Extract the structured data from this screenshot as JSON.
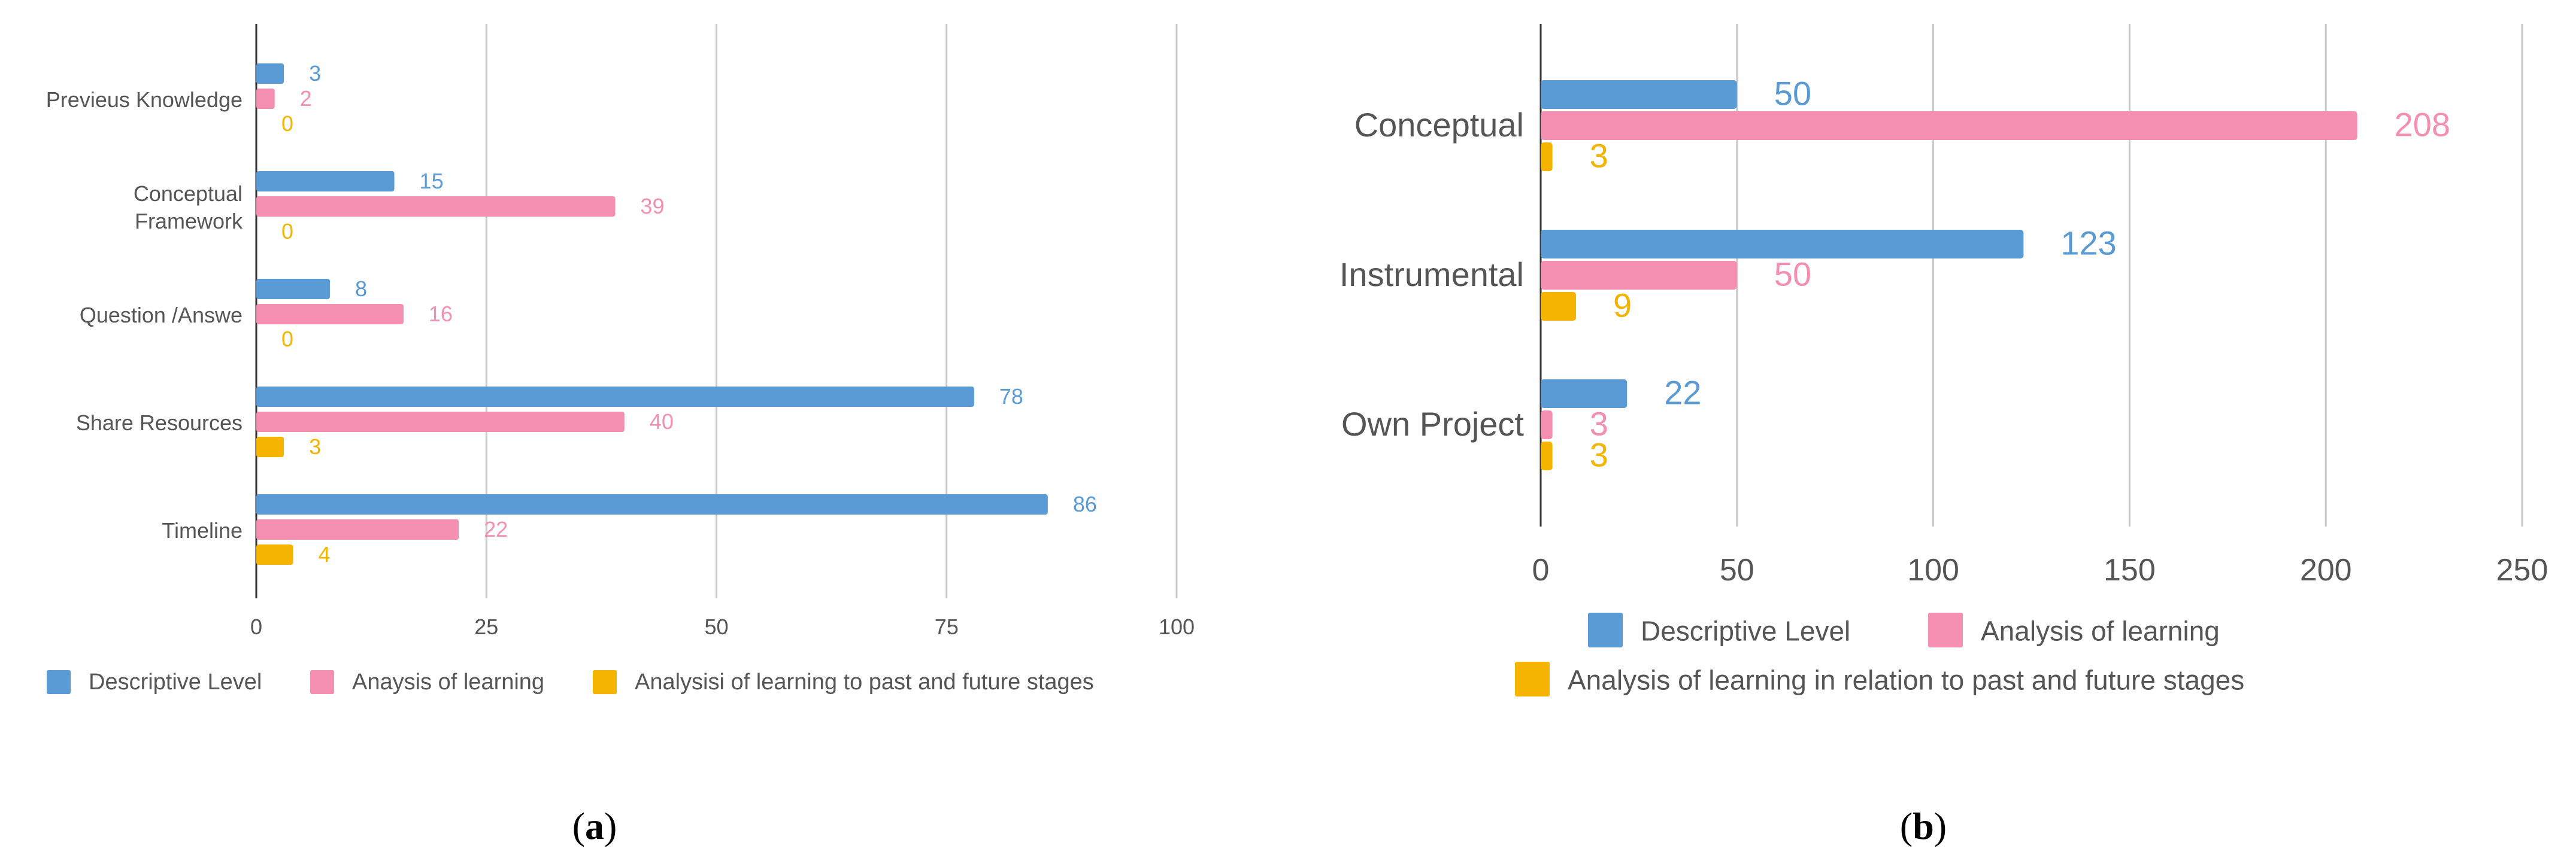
{
  "colors": {
    "descriptive": "#5b9bd5",
    "analysis": "#f48fb1",
    "past_future": "#f4b400"
  },
  "captions": {
    "a": {
      "open": "(",
      "letter": "a",
      "close": ")"
    },
    "b": {
      "open": "(",
      "letter": "b",
      "close": ")"
    }
  },
  "chart_data": [
    {
      "type": "bar",
      "orientation": "horizontal",
      "categories": [
        "Previeus Knowledge",
        "Conceptual Framework",
        "Question /Answe",
        "Share Resources",
        "Timeline"
      ],
      "category_lines": [
        [
          "Previeus Knowledge"
        ],
        [
          "Conceptual",
          "Framework"
        ],
        [
          "Question /Answe"
        ],
        [
          "Share Resources"
        ],
        [
          "Timeline"
        ]
      ],
      "series": [
        {
          "name": "Descriptive Level",
          "values": [
            3,
            15,
            8,
            78,
            86
          ],
          "color": "#5b9bd5"
        },
        {
          "name": "Anaysis of learning",
          "values": [
            2,
            39,
            16,
            40,
            22
          ],
          "color": "#f48fb1"
        },
        {
          "name": "Analysisi of learning to past and future stages",
          "values": [
            0,
            0,
            0,
            3,
            4
          ],
          "color": "#f4b400"
        }
      ],
      "xlim": [
        0,
        100
      ],
      "xticks": [
        "0",
        "25",
        "50",
        "75",
        "100"
      ],
      "tick_values": [
        0,
        25,
        50,
        75,
        100
      ],
      "grid": true,
      "legend_position": "bottom"
    },
    {
      "type": "bar",
      "orientation": "horizontal",
      "categories": [
        "Conceptual",
        "Instrumental",
        "Own Project"
      ],
      "category_lines": [
        [
          "Conceptual"
        ],
        [
          "Instrumental"
        ],
        [
          "Own Project"
        ]
      ],
      "series": [
        {
          "name": "Descriptive Level",
          "values": [
            50,
            123,
            22
          ],
          "color": "#5b9bd5"
        },
        {
          "name": "Analysis of learning",
          "values": [
            208,
            50,
            3
          ],
          "color": "#f48fb1"
        },
        {
          "name": "Analysis of learning in relation to past and future stages",
          "values": [
            3,
            9,
            3
          ],
          "color": "#f4b400"
        }
      ],
      "xlim": [
        0,
        250
      ],
      "xticks": [
        "0",
        "50",
        "100",
        "150",
        "200",
        "250"
      ],
      "tick_values": [
        0,
        50,
        100,
        150,
        200,
        250
      ],
      "grid": true,
      "legend_position": "bottom"
    }
  ]
}
